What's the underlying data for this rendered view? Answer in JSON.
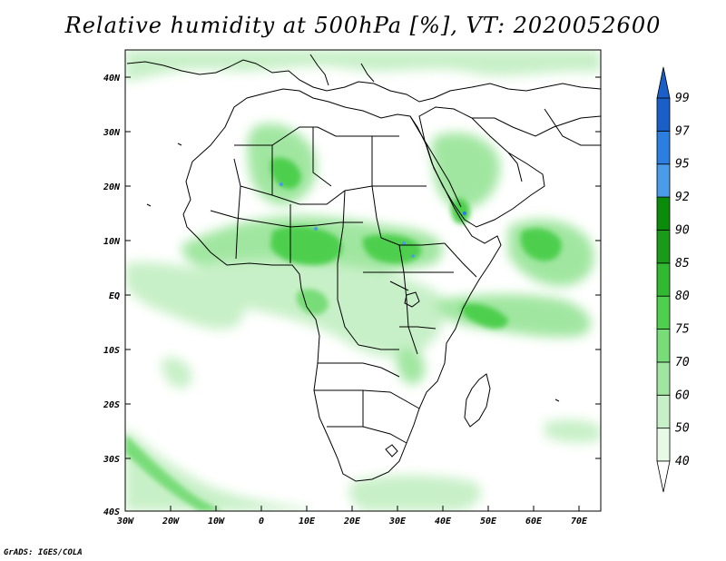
{
  "title": "Relative humidity at 500hPa [%], VT: 2020052600",
  "credit": "GrADS: IGES/COLA",
  "map": {
    "lat_ticks": [
      "40N",
      "30N",
      "20N",
      "10N",
      "EQ",
      "10S",
      "20S",
      "30S",
      "40S"
    ],
    "lon_ticks": [
      "30W",
      "20W",
      "10W",
      "0",
      "10E",
      "20E",
      "30E",
      "40E",
      "50E",
      "60E",
      "70E"
    ]
  },
  "colorbar": {
    "levels": [
      "99",
      "97",
      "95",
      "92",
      "90",
      "85",
      "80",
      "75",
      "70",
      "60",
      "50",
      "40"
    ],
    "colors": [
      "#e6fae6",
      "#c8f0c8",
      "#a0e6a0",
      "#78dc78",
      "#4ecf4e",
      "#32b932",
      "#199b19",
      "#0a8c0a",
      "#4a9be8",
      "#2b7fe0",
      "#1a5fc8"
    ]
  }
}
